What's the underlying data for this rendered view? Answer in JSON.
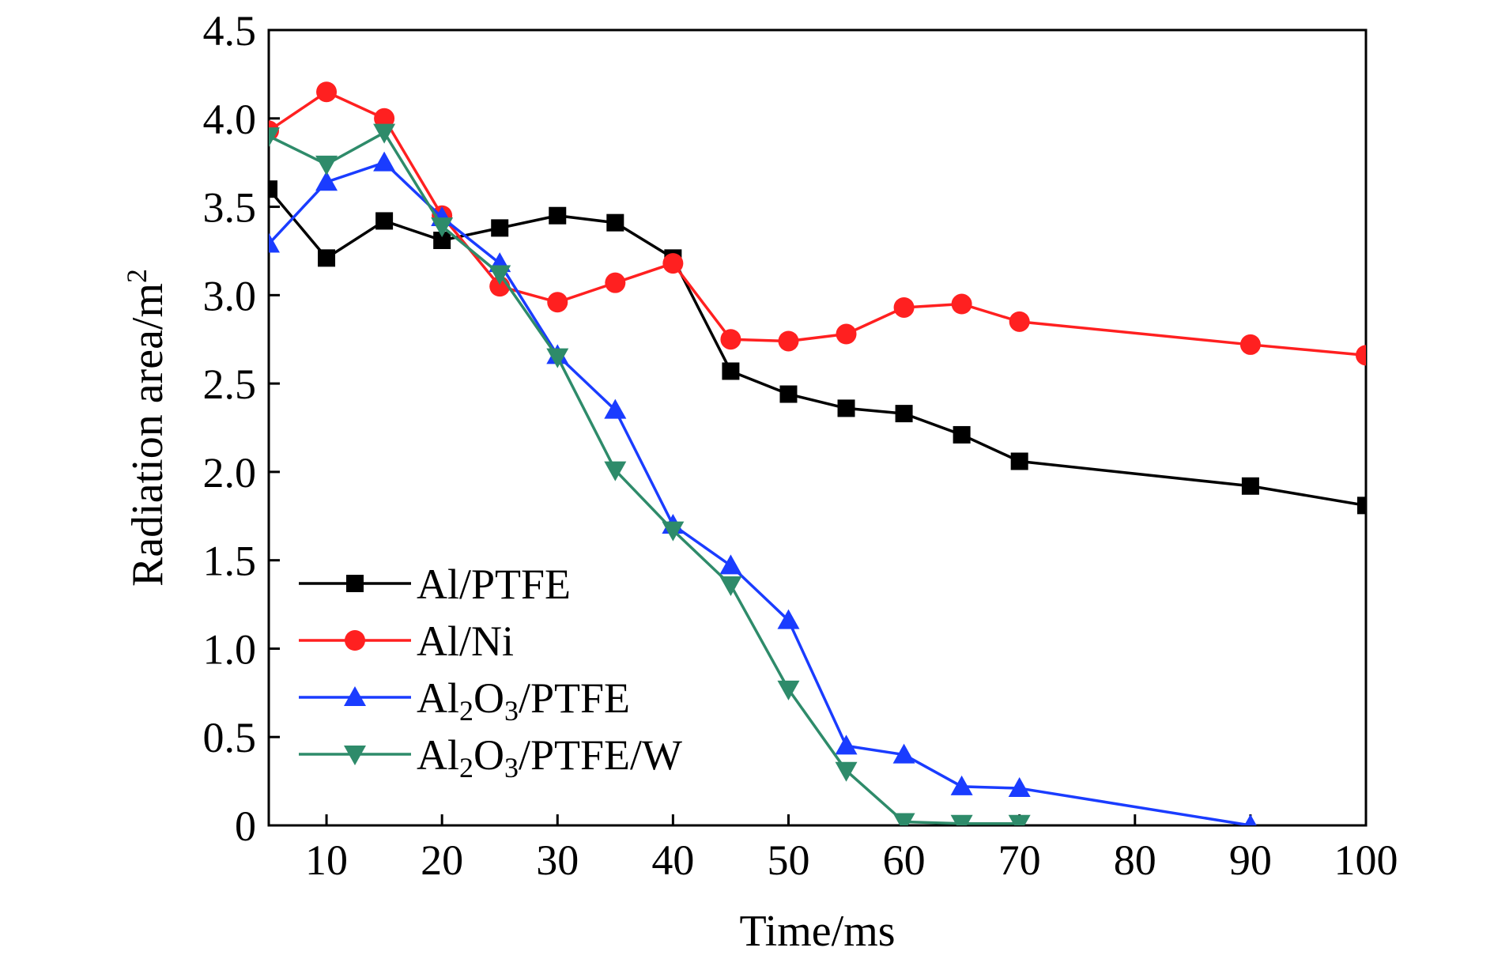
{
  "chart_data": {
    "type": "line",
    "xlabel": "Time/ms",
    "ylabel_main": "Radiation area/m",
    "ylabel_sup": "2",
    "xlim": [
      5,
      100
    ],
    "ylim": [
      0,
      4.5
    ],
    "x_ticks": [
      10,
      20,
      30,
      40,
      50,
      60,
      70,
      80,
      90,
      100
    ],
    "y_ticks": [
      0,
      0.5,
      1.0,
      1.5,
      2.0,
      2.5,
      3.0,
      3.5,
      4.0,
      4.5
    ],
    "x_tick_labels": [
      "10",
      "20",
      "30",
      "40",
      "50",
      "60",
      "70",
      "80",
      "90",
      "100"
    ],
    "y_tick_labels": [
      "0",
      "0.5",
      "1.0",
      "1.5",
      "2.0",
      "2.5",
      "3.0",
      "3.5",
      "4.0",
      "4.5"
    ],
    "grid": false,
    "legend_position": "bottom-left",
    "series": [
      {
        "name": "Al/PTFE",
        "legend_parts": [
          {
            "t": "Al/PTFE",
            "sub": false
          }
        ],
        "color": "#000000",
        "marker": "square",
        "x": [
          5,
          10,
          15,
          20,
          25,
          30,
          35,
          40,
          45,
          50,
          55,
          60,
          65,
          70,
          90,
          100
        ],
        "y": [
          3.6,
          3.21,
          3.42,
          3.31,
          3.38,
          3.45,
          3.41,
          3.21,
          2.57,
          2.44,
          2.36,
          2.33,
          2.21,
          2.06,
          1.92,
          1.81
        ]
      },
      {
        "name": "Al/Ni",
        "legend_parts": [
          {
            "t": "Al/Ni",
            "sub": false
          }
        ],
        "color": "#ff2020",
        "marker": "circle",
        "x": [
          5,
          10,
          15,
          20,
          25,
          30,
          35,
          40,
          45,
          50,
          55,
          60,
          65,
          70,
          90,
          100
        ],
        "y": [
          3.93,
          4.15,
          4.0,
          3.45,
          3.05,
          2.96,
          3.07,
          3.18,
          2.75,
          2.74,
          2.78,
          2.93,
          2.95,
          2.85,
          2.72,
          2.66
        ]
      },
      {
        "name": "Al2O3/PTFE",
        "legend_parts": [
          {
            "t": "Al",
            "sub": false
          },
          {
            "t": "2",
            "sub": true
          },
          {
            "t": "O",
            "sub": false
          },
          {
            "t": "3",
            "sub": true
          },
          {
            "t": "/PTFE",
            "sub": false
          }
        ],
        "color": "#1a3cff",
        "marker": "triangle-up",
        "x": [
          5,
          10,
          15,
          20,
          25,
          30,
          35,
          40,
          45,
          50,
          55,
          60,
          65,
          70,
          90
        ],
        "y": [
          3.29,
          3.64,
          3.75,
          3.44,
          3.18,
          2.66,
          2.35,
          1.7,
          1.47,
          1.16,
          0.45,
          0.4,
          0.22,
          0.21,
          0.0
        ]
      },
      {
        "name": "Al2O3/PTFE/W",
        "legend_parts": [
          {
            "t": "Al",
            "sub": false
          },
          {
            "t": "2",
            "sub": true
          },
          {
            "t": "O",
            "sub": false
          },
          {
            "t": "3",
            "sub": true
          },
          {
            "t": "/PTFE/W",
            "sub": false
          }
        ],
        "color": "#2e8b6a",
        "marker": "triangle-down",
        "x": [
          5,
          10,
          15,
          20,
          25,
          30,
          35,
          40,
          45,
          50,
          55,
          60,
          65,
          70
        ],
        "y": [
          3.9,
          3.74,
          3.92,
          3.39,
          3.12,
          2.65,
          2.01,
          1.67,
          1.36,
          0.77,
          0.31,
          0.02,
          0.01,
          0.01
        ]
      }
    ]
  }
}
